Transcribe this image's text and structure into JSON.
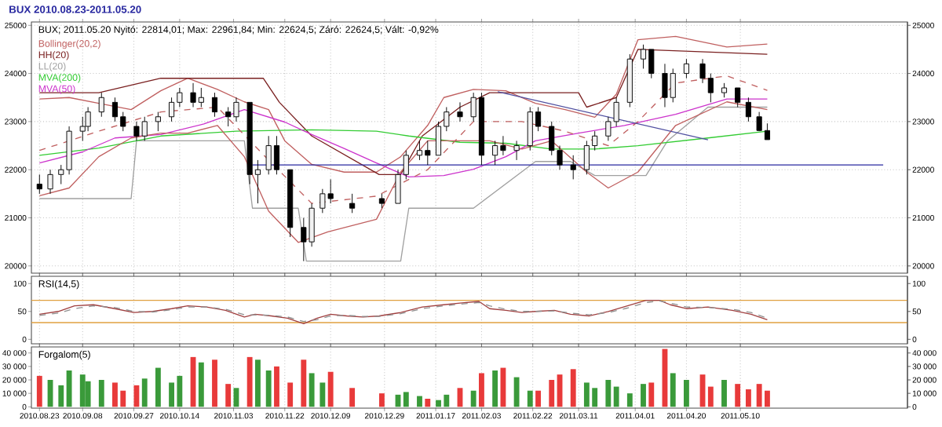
{
  "chart_data": [
    {
      "type": "candlestick",
      "title": "BUX 2010.08.23-2011.05.20",
      "annotations": [
        "BUX; 2011.05.20 Nyitó: 22814,01; Max: 22961,84; Min: 22624,5; Záró: 22624,5; Vált: -0,92%"
      ],
      "x": [
        "2010-08-23",
        "2010-08-27",
        "2010-08-31",
        "2010-09-03",
        "2010-09-08",
        "2010-09-10",
        "2010-09-15",
        "2010-09-20",
        "2010-09-23",
        "2010-09-28",
        "2010-10-01",
        "2010-10-06",
        "2010-10-11",
        "2010-10-14",
        "2010-10-19",
        "2010-10-22",
        "2010-10-27",
        "2010-11-01",
        "2010-11-04",
        "2010-11-09",
        "2010-11-12",
        "2010-11-16",
        "2010-11-19",
        "2010-11-24",
        "2010-11-29",
        "2010-12-02",
        "2010-12-06",
        "2010-12-09",
        "2010-12-17",
        "2010-12-28",
        "2011-01-03",
        "2011-01-06",
        "2011-01-11",
        "2011-01-14",
        "2011-01-18",
        "2011-01-21",
        "2011-01-26",
        "2011-01-31",
        "2011-02-03",
        "2011-02-08",
        "2011-02-11",
        "2011-02-16",
        "2011-02-21",
        "2011-02-24",
        "2011-03-01",
        "2011-03-04",
        "2011-03-09",
        "2011-03-14",
        "2011-03-17",
        "2011-03-22",
        "2011-03-25",
        "2011-03-30",
        "2011-04-04",
        "2011-04-07",
        "2011-04-12",
        "2011-04-15",
        "2011-04-20",
        "2011-04-26",
        "2011-04-29",
        "2011-05-04",
        "2011-05-09",
        "2011-05-13",
        "2011-05-17",
        "2011-05-20"
      ],
      "ohlc": [
        [
          21700,
          21900,
          21500,
          21600
        ],
        [
          21600,
          22000,
          21500,
          21900
        ],
        [
          21900,
          22100,
          21700,
          22000
        ],
        [
          22000,
          22900,
          21900,
          22800
        ],
        [
          22800,
          23100,
          22600,
          22900
        ],
        [
          22900,
          23300,
          22800,
          23200
        ],
        [
          23200,
          23600,
          23100,
          23500
        ],
        [
          23400,
          23500,
          23000,
          23100
        ],
        [
          23100,
          23200,
          22800,
          22900
        ],
        [
          22900,
          23000,
          22600,
          22700
        ],
        [
          22700,
          23100,
          22600,
          23000
        ],
        [
          23000,
          23200,
          22800,
          23100
        ],
        [
          23100,
          23500,
          23000,
          23400
        ],
        [
          23400,
          23700,
          23300,
          23600
        ],
        [
          23600,
          23800,
          23300,
          23400
        ],
        [
          23400,
          23700,
          23300,
          23500
        ],
        [
          23500,
          23600,
          23100,
          23200
        ],
        [
          23200,
          23300,
          22900,
          23100
        ],
        [
          23100,
          23500,
          23000,
          23400
        ],
        [
          23400,
          23400,
          21700,
          21900
        ],
        [
          21900,
          22200,
          21300,
          22000
        ],
        [
          22000,
          22700,
          21900,
          22500
        ],
        [
          22500,
          22700,
          21900,
          22000
        ],
        [
          22000,
          22000,
          20600,
          20800
        ],
        [
          20800,
          21000,
          20100,
          20500
        ],
        [
          20500,
          21300,
          20400,
          21200
        ],
        [
          21200,
          21600,
          21100,
          21500
        ],
        [
          21500,
          21800,
          21300,
          21400
        ],
        [
          21300,
          21500,
          21100,
          21200
        ],
        [
          21400,
          21500,
          21200,
          21300
        ],
        [
          21300,
          22000,
          21300,
          21900
        ],
        [
          21900,
          22400,
          21800,
          22300
        ],
        [
          22300,
          22600,
          22200,
          22400
        ],
        [
          22400,
          22600,
          22100,
          22300
        ],
        [
          22300,
          23000,
          22300,
          22900
        ],
        [
          22900,
          23300,
          22800,
          23200
        ],
        [
          23200,
          23400,
          23000,
          23100
        ],
        [
          23100,
          23600,
          23000,
          23500
        ],
        [
          23500,
          23600,
          22100,
          22300
        ],
        [
          22300,
          22600,
          22100,
          22500
        ],
        [
          22500,
          22700,
          22300,
          22400
        ],
        [
          22400,
          22600,
          22200,
          22500
        ],
        [
          22500,
          23300,
          22400,
          23200
        ],
        [
          23200,
          23300,
          22800,
          22900
        ],
        [
          22900,
          23000,
          22300,
          22400
        ],
        [
          22400,
          22500,
          22000,
          22100
        ],
        [
          22100,
          22300,
          21800,
          22000
        ],
        [
          22000,
          22600,
          21900,
          22500
        ],
        [
          22500,
          22800,
          22400,
          22700
        ],
        [
          22700,
          23100,
          22600,
          23000
        ],
        [
          23000,
          23500,
          22900,
          23400
        ],
        [
          23400,
          24400,
          23300,
          24300
        ],
        [
          24300,
          24600,
          24100,
          24500
        ],
        [
          24500,
          24500,
          23900,
          24000
        ],
        [
          24000,
          24200,
          23300,
          23500
        ],
        [
          23500,
          24100,
          23400,
          24000
        ],
        [
          24000,
          24300,
          23900,
          24200
        ],
        [
          24200,
          24300,
          23800,
          23900
        ],
        [
          23900,
          24000,
          23400,
          23600
        ],
        [
          23600,
          23800,
          23500,
          23700
        ],
        [
          23700,
          23700,
          23300,
          23400
        ],
        [
          23400,
          23500,
          23000,
          23100
        ],
        [
          23100,
          23200,
          22800,
          22814.01
        ],
        [
          22814.01,
          22961.84,
          22624.5,
          22624.5
        ]
      ],
      "xlim": [
        "2010-08-20",
        "2011-07-11"
      ],
      "xticks": [
        {
          "value": "2010-08-23",
          "label": null
        },
        {
          "value": "2010-09-08",
          "label": null
        },
        {
          "value": "2010-09-27",
          "label": null
        },
        {
          "value": "2010-10-14",
          "label": null
        },
        {
          "value": "2010-11-03",
          "label": null
        },
        {
          "value": "2010-11-22",
          "label": null
        },
        {
          "value": "2010-12-09",
          "label": null
        },
        {
          "value": "2010-12-29",
          "label": null
        },
        {
          "value": "2011-01-17",
          "label": null
        },
        {
          "value": "2011-02-03",
          "label": null
        },
        {
          "value": "2011-02-22",
          "label": null
        },
        {
          "value": "2011-03-11",
          "label": null
        },
        {
          "value": "2011-04-01",
          "label": null
        },
        {
          "value": "2011-04-20",
          "label": null
        },
        {
          "value": "2011-05-10",
          "label": null
        }
      ],
      "ylim": [
        19850,
        25070
      ],
      "yticks": [
        20000,
        21000,
        22000,
        23000,
        24000,
        25000
      ],
      "y2lim": [
        19850,
        25070
      ],
      "y2ticks": [
        20000,
        21000,
        22000,
        23000,
        24000,
        25000
      ],
      "grid": true,
      "legend": "top left",
      "tick_labels": "y",
      "series": [
        {
          "name": "Bollinger(20,2)",
          "type": "line",
          "color": "#c06060",
          "x": [
            "2010-08-23",
            "2010-09-03",
            "2010-09-14",
            "2010-09-26",
            "2010-10-07",
            "2010-10-17",
            "2010-10-28",
            "2010-11-07",
            "2010-11-16",
            "2010-11-22",
            "2010-12-02",
            "2010-12-14",
            "2010-12-26",
            "2011-01-04",
            "2011-01-14",
            "2011-01-20",
            "2011-01-31",
            "2011-02-12",
            "2011-02-23",
            "2011-03-06",
            "2011-03-17",
            "2011-03-25",
            "2011-04-02",
            "2011-04-16",
            "2011-05-05",
            "2011-05-20"
          ],
          "values": [
            23470,
            23500,
            23380,
            23250,
            23640,
            23900,
            23670,
            23410,
            23250,
            22600,
            22110,
            21950,
            21950,
            22270,
            22920,
            23500,
            23670,
            23640,
            23380,
            23250,
            23090,
            23570,
            24700,
            24770,
            24550,
            24610
          ]
        },
        {
          "name": "HH(20)",
          "type": "line",
          "color": "#7a2020",
          "x": [
            "2010-08-23",
            "2010-09-14",
            "2010-10-07",
            "2010-11-14",
            "2010-11-20",
            "2010-12-02",
            "2010-12-27",
            "2011-01-04",
            "2011-01-12",
            "2011-01-26",
            "2011-02-06",
            "2011-03-11",
            "2011-03-14",
            "2011-03-25",
            "2011-04-02",
            "2011-05-20"
          ],
          "values": [
            23600,
            23600,
            23900,
            23900,
            23400,
            22700,
            21900,
            21900,
            22700,
            23300,
            23600,
            23600,
            23300,
            23500,
            24500,
            24400
          ]
        },
        {
          "name": "LL(20)",
          "type": "line",
          "color": "#a0a0a0",
          "x": [
            "2010-08-23",
            "2010-09-26",
            "2010-09-28",
            "2010-11-07",
            "2010-11-10",
            "2010-11-27",
            "2010-11-30",
            "2011-01-04",
            "2011-01-07",
            "2011-01-31",
            "2011-02-23",
            "2011-03-08",
            "2011-03-17",
            "2011-04-05",
            "2011-04-13",
            "2011-04-28",
            "2011-05-20"
          ],
          "values": [
            21400,
            21400,
            22600,
            22600,
            21200,
            21200,
            20100,
            20100,
            21200,
            21200,
            22170,
            22170,
            21880,
            21880,
            22600,
            23300,
            23300
          ]
        },
        {
          "name": "MVA(200)",
          "type": "line",
          "color": "#33cc33",
          "x": [
            "2010-08-23",
            "2010-09-14",
            "2010-10-07",
            "2010-11-04",
            "2010-12-02",
            "2010-12-26",
            "2011-01-07",
            "2011-01-26",
            "2011-02-12",
            "2011-03-01",
            "2011-03-17",
            "2011-04-02",
            "2011-04-28",
            "2011-05-20"
          ],
          "values": [
            22300,
            22450,
            22700,
            22800,
            22830,
            22800,
            22700,
            22570,
            22550,
            22430,
            22430,
            22500,
            22660,
            22800
          ]
        },
        {
          "name": "MVA(50)",
          "type": "line",
          "color": "#cc33cc",
          "x": [
            "2010-08-23",
            "2010-09-08",
            "2010-09-20",
            "2010-10-07",
            "2010-10-23",
            "2010-11-07",
            "2010-11-22",
            "2010-12-02",
            "2010-12-14",
            "2010-12-26",
            "2011-01-07",
            "2011-01-20",
            "2011-01-31",
            "2011-02-12",
            "2011-02-23",
            "2011-03-11",
            "2011-03-28",
            "2011-04-16",
            "2011-05-05",
            "2011-05-20"
          ],
          "values": [
            22140,
            22370,
            22660,
            22730,
            22950,
            23250,
            22990,
            22730,
            22440,
            22140,
            21850,
            21880,
            22010,
            22270,
            22600,
            22760,
            22920,
            23150,
            23470,
            23470
          ]
        },
        {
          "type": "line",
          "color": "#c06060",
          "x": [
            "2010-08-23",
            "2010-09-03",
            "2010-09-14",
            "2010-09-26",
            "2010-10-07",
            "2010-10-17",
            "2010-10-28",
            "2010-11-07",
            "2010-11-16",
            "2010-11-27",
            "2010-12-08",
            "2010-12-26",
            "2011-01-04",
            "2011-01-14",
            "2011-01-26",
            "2011-02-06",
            "2011-02-18",
            "2011-03-01",
            "2011-03-14",
            "2011-03-22",
            "2011-04-02",
            "2011-04-16",
            "2011-05-05",
            "2011-05-20"
          ],
          "values": [
            21460,
            21620,
            22270,
            22660,
            22760,
            22760,
            22920,
            22270,
            21140,
            20490,
            20710,
            20970,
            21950,
            22600,
            22600,
            22600,
            22430,
            22600,
            21950,
            21620,
            21950,
            22920,
            23410,
            23250
          ]
        },
        {
          "type": "line",
          "color": "#c06060",
          "line_style": "dashed",
          "x": [
            "2010-08-23",
            "2010-09-14",
            "2010-10-07",
            "2010-10-28",
            "2010-11-16",
            "2010-12-02",
            "2010-12-26",
            "2011-01-14",
            "2011-01-31",
            "2011-02-18",
            "2011-03-06",
            "2011-03-22",
            "2011-04-02",
            "2011-04-16",
            "2011-05-05",
            "2011-05-20"
          ],
          "values": [
            22400,
            22800,
            23200,
            23300,
            22200,
            21300,
            21450,
            22000,
            23000,
            23000,
            22800,
            22500,
            23000,
            23800,
            23950,
            23650
          ]
        },
        {
          "type": "line",
          "color": "#2828a0",
          "x": [
            "2010-11-10",
            "2011-07-02"
          ],
          "values": [
            22100,
            22100
          ]
        },
        {
          "type": "line",
          "color": "#5050a0",
          "x": [
            "2011-02-09",
            "2011-04-28"
          ],
          "values": [
            23620,
            22620
          ]
        }
      ]
    },
    {
      "type": "line",
      "title": "RSI(14,5)",
      "xlim": [
        "2010-08-20",
        "2011-07-11"
      ],
      "xticks": [
        {
          "value": "2010-08-23",
          "label": null
        },
        {
          "value": "2010-09-08",
          "label": null
        },
        {
          "value": "2010-09-27",
          "label": null
        },
        {
          "value": "2010-10-14",
          "label": null
        },
        {
          "value": "2010-11-03",
          "label": null
        },
        {
          "value": "2010-11-22",
          "label": null
        },
        {
          "value": "2010-12-09",
          "label": null
        },
        {
          "value": "2010-12-29",
          "label": null
        },
        {
          "value": "2011-01-17",
          "label": null
        },
        {
          "value": "2011-02-03",
          "label": null
        },
        {
          "value": "2011-02-22",
          "label": null
        },
        {
          "value": "2011-03-11",
          "label": null
        },
        {
          "value": "2011-04-01",
          "label": null
        },
        {
          "value": "2011-04-20",
          "label": null
        },
        {
          "value": "2011-05-10",
          "label": null
        }
      ],
      "ylim": [
        -8,
        113
      ],
      "yticks": [
        0,
        50,
        100
      ],
      "y2lim": [
        -8,
        113
      ],
      "y2ticks": [
        0,
        50,
        100
      ],
      "grid": "x",
      "tick_labels": "y",
      "ref_lines": [
        {
          "axis": "y",
          "value": 70,
          "color": "#e0a040"
        },
        {
          "axis": "y",
          "value": 30,
          "color": "#e0a040"
        }
      ],
      "x": [
        "2010-08-23",
        "2010-08-30",
        "2010-09-05",
        "2010-09-12",
        "2010-09-20",
        "2010-09-27",
        "2010-10-04",
        "2010-10-11",
        "2010-10-17",
        "2010-10-24",
        "2010-10-31",
        "2010-11-07",
        "2010-11-11",
        "2010-11-17",
        "2010-11-23",
        "2010-11-29",
        "2010-12-04",
        "2010-12-09",
        "2010-12-15",
        "2010-12-21",
        "2010-12-27",
        "2011-01-04",
        "2011-01-12",
        "2011-01-20",
        "2011-01-26",
        "2011-02-02",
        "2011-02-06",
        "2011-02-12",
        "2011-02-18",
        "2011-02-23",
        "2011-03-02",
        "2011-03-08",
        "2011-03-15",
        "2011-03-22",
        "2011-03-29",
        "2011-04-05",
        "2011-04-10",
        "2011-04-14",
        "2011-04-20",
        "2011-04-28",
        "2011-05-07",
        "2011-05-14",
        "2011-05-20"
      ],
      "series": [
        {
          "color": "#a04040",
          "values": [
            45,
            50,
            60,
            62,
            55,
            48,
            50,
            55,
            60,
            58,
            52,
            40,
            45,
            42,
            38,
            28,
            38,
            45,
            42,
            40,
            42,
            48,
            58,
            62,
            65,
            68,
            55,
            52,
            48,
            50,
            52,
            45,
            42,
            50,
            60,
            70,
            70,
            62,
            55,
            58,
            52,
            45,
            35
          ]
        },
        {
          "color": "#909090",
          "line_style": "dashed",
          "values": [
            43,
            47,
            55,
            60,
            57,
            50,
            49,
            53,
            58,
            58,
            54,
            44,
            44,
            43,
            40,
            32,
            35,
            42,
            43,
            41,
            41,
            46,
            55,
            60,
            63,
            66,
            60,
            54,
            50,
            50,
            51,
            47,
            44,
            48,
            56,
            66,
            69,
            65,
            58,
            57,
            54,
            48,
            38
          ]
        }
      ]
    },
    {
      "type": "bar",
      "title": "Forgalom(5)",
      "xlim": [
        "2010-08-20",
        "2011-07-11"
      ],
      "xticks": [
        {
          "value": "2010-08-23",
          "label": "2010.08.23"
        },
        {
          "value": "2010-09-08",
          "label": "2010.09.08"
        },
        {
          "value": "2010-09-27",
          "label": "2010.09.27"
        },
        {
          "value": "2010-10-14",
          "label": "2010.10.14"
        },
        {
          "value": "2010-11-03",
          "label": "2010.11.03"
        },
        {
          "value": "2010-11-22",
          "label": "2010.11.22"
        },
        {
          "value": "2010-12-09",
          "label": "2010.12.09"
        },
        {
          "value": "2010-12-29",
          "label": "2010.12.29"
        },
        {
          "value": "2011-01-17",
          "label": "2011.01.17"
        },
        {
          "value": "2011-02-03",
          "label": "2011.02.03"
        },
        {
          "value": "2011-02-22",
          "label": "2011.02.22"
        },
        {
          "value": "2011-03-11",
          "label": "2011.03.11"
        },
        {
          "value": "2011-04-01",
          "label": "2011.04.01"
        },
        {
          "value": "2011-04-20",
          "label": "2011.04.20"
        },
        {
          "value": "2011-05-10",
          "label": "2011.05.10"
        }
      ],
      "ylim": [
        -1000,
        44500
      ],
      "yticks": [
        0,
        {
          "value": 10000,
          "label": "10 000"
        },
        {
          "value": 20000,
          "label": "20 000"
        },
        {
          "value": 30000,
          "label": "30 000"
        },
        {
          "value": 40000,
          "label": "40 000"
        }
      ],
      "y2lim": [
        -1000,
        44500
      ],
      "y2ticks": [
        0,
        {
          "value": 10000,
          "label": "10 000"
        },
        {
          "value": 20000,
          "label": "20 000"
        },
        {
          "value": 30000,
          "label": "30 000"
        },
        {
          "value": 40000,
          "label": "40 000"
        }
      ],
      "grid": "x",
      "x": [
        "2010-08-23",
        "2010-08-27",
        "2010-08-31",
        "2010-09-03",
        "2010-09-08",
        "2010-09-10",
        "2010-09-15",
        "2010-09-20",
        "2010-09-23",
        "2010-09-28",
        "2010-10-01",
        "2010-10-06",
        "2010-10-11",
        "2010-10-14",
        "2010-10-19",
        "2010-10-22",
        "2010-10-27",
        "2010-11-01",
        "2010-11-04",
        "2010-11-09",
        "2010-11-12",
        "2010-11-16",
        "2010-11-19",
        "2010-11-24",
        "2010-11-29",
        "2010-12-02",
        "2010-12-06",
        "2010-12-09",
        "2010-12-17",
        "2010-12-28",
        "2011-01-03",
        "2011-01-06",
        "2011-01-11",
        "2011-01-14",
        "2011-01-18",
        "2011-01-21",
        "2011-01-26",
        "2011-01-31",
        "2011-02-03",
        "2011-02-08",
        "2011-02-11",
        "2011-02-16",
        "2011-02-21",
        "2011-02-24",
        "2011-03-01",
        "2011-03-04",
        "2011-03-09",
        "2011-03-14",
        "2011-03-17",
        "2011-03-22",
        "2011-03-25",
        "2011-03-30",
        "2011-04-04",
        "2011-04-07",
        "2011-04-12",
        "2011-04-15",
        "2011-04-20",
        "2011-04-26",
        "2011-04-29",
        "2011-05-04",
        "2011-05-09",
        "2011-05-13",
        "2011-05-17",
        "2011-05-20"
      ],
      "values": [
        23000,
        20000,
        16000,
        27000,
        24000,
        19000,
        20000,
        18000,
        12000,
        16000,
        21000,
        29000,
        18000,
        23000,
        37000,
        33000,
        35000,
        17000,
        14000,
        37000,
        35000,
        27000,
        30000,
        18000,
        35000,
        25000,
        18000,
        26000,
        14000,
        10000,
        9000,
        11000,
        8000,
        6000,
        5000,
        9000,
        14000,
        12000,
        25000,
        27000,
        29000,
        22000,
        12000,
        12000,
        20000,
        24000,
        28000,
        18000,
        14000,
        20000,
        15000,
        10000,
        17000,
        18000,
        43000,
        25000,
        20000,
        24000,
        15000,
        20000,
        17000,
        13000,
        17000,
        12000
      ],
      "colors": [
        "#e83a3a",
        "#3a9a3a",
        "#3a9a3a",
        "#3a9a3a",
        "#3a9a3a",
        "#3a9a3a",
        "#3a9a3a",
        "#e83a3a",
        "#e83a3a",
        "#e83a3a",
        "#3a9a3a",
        "#3a9a3a",
        "#3a9a3a",
        "#3a9a3a",
        "#e83a3a",
        "#3a9a3a",
        "#e83a3a",
        "#e83a3a",
        "#3a9a3a",
        "#e83a3a",
        "#3a9a3a",
        "#3a9a3a",
        "#e83a3a",
        "#e83a3a",
        "#e83a3a",
        "#3a9a3a",
        "#3a9a3a",
        "#e83a3a",
        "#e83a3a",
        "#e83a3a",
        "#3a9a3a",
        "#3a9a3a",
        "#3a9a3a",
        "#e83a3a",
        "#3a9a3a",
        "#3a9a3a",
        "#e83a3a",
        "#3a9a3a",
        "#e83a3a",
        "#3a9a3a",
        "#e83a3a",
        "#3a9a3a",
        "#3a9a3a",
        "#e83a3a",
        "#e83a3a",
        "#e83a3a",
        "#e83a3a",
        "#3a9a3a",
        "#3a9a3a",
        "#3a9a3a",
        "#3a9a3a",
        "#3a9a3a",
        "#3a9a3a",
        "#e83a3a",
        "#e83a3a",
        "#3a9a3a",
        "#3a9a3a",
        "#e83a3a",
        "#e83a3a",
        "#3a9a3a",
        "#e83a3a",
        "#e83a3a",
        "#e83a3a",
        "#e83a3a"
      ]
    }
  ]
}
